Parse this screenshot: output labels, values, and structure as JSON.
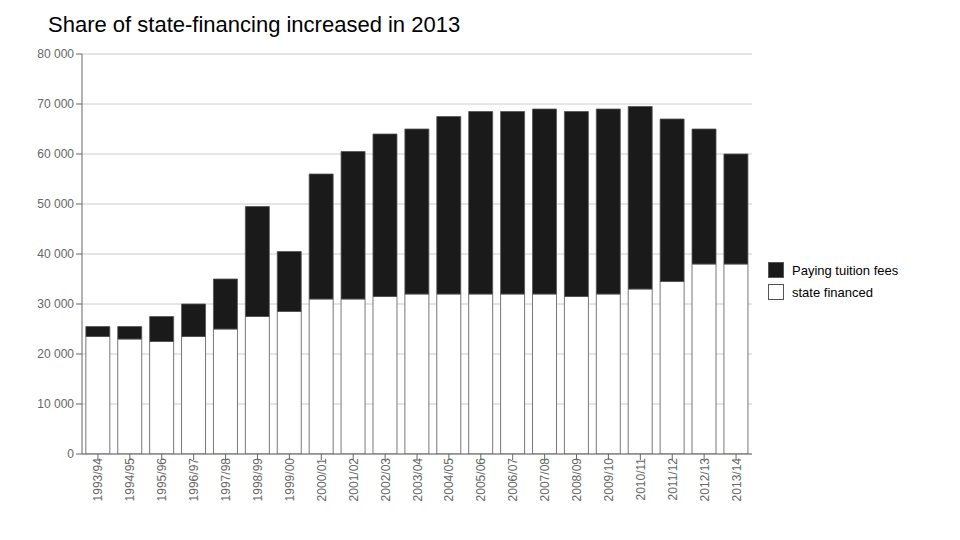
{
  "chart_data": {
    "type": "bar",
    "title": "Share of state-financing increased in 2013",
    "stacked": true,
    "grid": true,
    "legend": "right",
    "categories": [
      "1993/94",
      "1994/95",
      "1995/96",
      "1996/97",
      "1997/98",
      "1998/99",
      "1999/00",
      "2000/01",
      "2001/02",
      "2002/03",
      "2003/04",
      "2004/05",
      "2005/06",
      "2006/07",
      "2007/08",
      "2008/09",
      "2009/10",
      "2010/11",
      "2011/12",
      "2012/13",
      "2013/14"
    ],
    "series": [
      {
        "name": "state financed",
        "color": "#ffffff",
        "values": [
          23500,
          23000,
          22500,
          23500,
          25000,
          27500,
          28500,
          31000,
          31000,
          31500,
          32000,
          32000,
          32000,
          32000,
          32000,
          31500,
          32000,
          33000,
          34500,
          38000,
          38000
        ]
      },
      {
        "name": "Paying tuition fees",
        "color": "#1a1a1a",
        "values": [
          2000,
          2500,
          5000,
          6500,
          10000,
          22000,
          12000,
          25000,
          29500,
          32500,
          33000,
          35500,
          36500,
          36500,
          37000,
          37000,
          37000,
          36500,
          32500,
          27000,
          22000
        ]
      }
    ],
    "ylim": [
      0,
      80000
    ],
    "yticks": [
      0,
      {
        "value": 10000,
        "label": "10 000"
      },
      {
        "value": 20000,
        "label": "20 000"
      },
      {
        "value": 30000,
        "label": "30 000"
      },
      {
        "value": 40000,
        "label": "40 000"
      },
      {
        "value": 50000,
        "label": "50 000"
      },
      {
        "value": 60000,
        "label": "60 000"
      },
      {
        "value": 70000,
        "label": "70 000"
      },
      {
        "value": 80000,
        "label": "80 000"
      }
    ]
  }
}
